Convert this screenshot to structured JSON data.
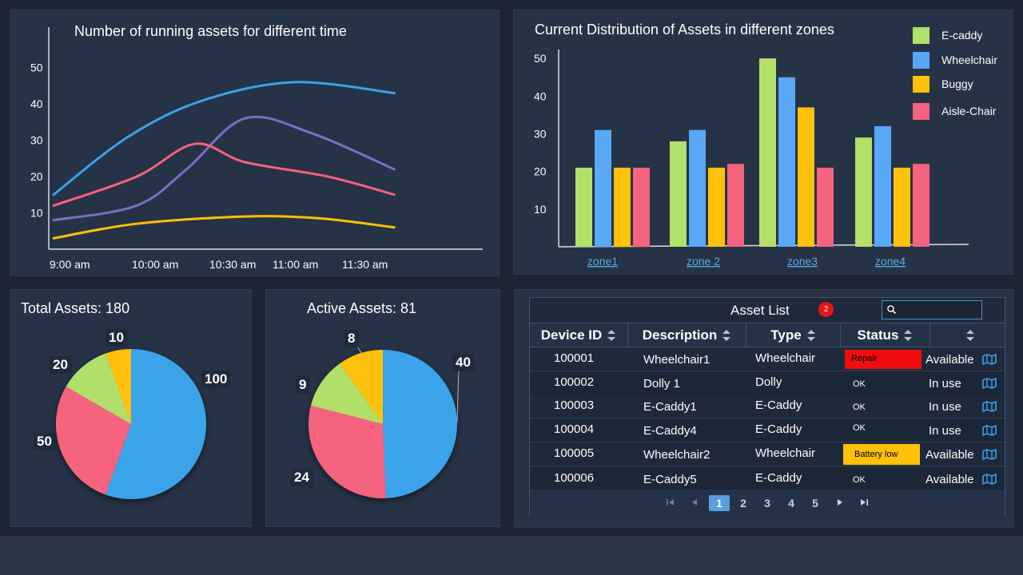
{
  "colors": {
    "e_caddy": "#b1e06b",
    "wheelchair": "#58a8f5",
    "buggy": "#ffc10a",
    "aisle_chair": "#f5637e",
    "line_blue": "#3aa3ea",
    "line_purple": "#7b6fc4",
    "line_pink": "#f5637e",
    "line_yellow": "#ffc10a",
    "pie_blue": "#3aa3ea",
    "pie_pink": "#f5637e",
    "pie_green": "#b1e06b",
    "pie_yellow": "#ffc10a",
    "repair": "#ef0d0d",
    "battery_low": "#ffc10a"
  },
  "line_chart": {
    "title": "Number of running assets for different time",
    "chart_data": {
      "type": "line",
      "x_labels": [
        "9:00 am",
        "10:00 am",
        "10:30 am",
        "11:00 am",
        "11:30 am"
      ],
      "y_ticks": [
        10,
        20,
        30,
        40,
        50
      ],
      "ylim": [
        0,
        55
      ],
      "series": [
        {
          "color": "#3aa3ea",
          "points": [
            [
              0,
              15
            ],
            [
              0.9,
              31
            ],
            [
              1.8,
              41
            ],
            [
              2.9,
              46
            ],
            [
              4.1,
              43
            ]
          ]
        },
        {
          "color": "#7b6fc4",
          "points": [
            [
              0,
              8
            ],
            [
              1,
              12
            ],
            [
              1.6,
              22
            ],
            [
              2.3,
              36
            ],
            [
              3.1,
              32
            ],
            [
              4.1,
              22
            ]
          ]
        },
        {
          "color": "#f5637e",
          "points": [
            [
              0,
              12
            ],
            [
              1,
              20
            ],
            [
              1.7,
              29
            ],
            [
              2.3,
              24
            ],
            [
              3.3,
              20
            ],
            [
              4.1,
              15
            ]
          ]
        },
        {
          "color": "#ffc10a",
          "points": [
            [
              0,
              3
            ],
            [
              1,
              7
            ],
            [
              2.3,
              9
            ],
            [
              3.2,
              8.5
            ],
            [
              4.1,
              6
            ]
          ]
        }
      ]
    }
  },
  "bar_chart": {
    "title": "Current Distribution of Assets in different zones",
    "chart_data": {
      "type": "bar",
      "categories": [
        "zone1",
        "zone 2",
        "zone3",
        "zone4"
      ],
      "y_ticks": [
        10,
        20,
        30,
        40,
        50
      ],
      "ylim": [
        0,
        53
      ],
      "series": [
        {
          "name": "E-caddy",
          "color": "#b1e06b",
          "values": [
            21,
            28,
            50,
            29
          ]
        },
        {
          "name": "Wheelchair",
          "color": "#58a8f5",
          "values": [
            31,
            31,
            45,
            32
          ]
        },
        {
          "name": "Buggy",
          "color": "#ffc10a",
          "values": [
            21,
            21,
            37,
            21
          ]
        },
        {
          "name": "Aisle-Chair",
          "color": "#f5637e",
          "values": [
            21,
            22,
            21,
            22
          ]
        }
      ],
      "legend_position": "top-right"
    }
  },
  "total_assets": {
    "title": "Total Assets: 180",
    "chart_data": {
      "type": "pie",
      "slices": [
        {
          "label": "100",
          "value": 100,
          "color": "#3aa3ea"
        },
        {
          "label": "50",
          "value": 50,
          "color": "#f5637e"
        },
        {
          "label": "20",
          "value": 20,
          "color": "#b1e06b"
        },
        {
          "label": "10",
          "value": 10,
          "color": "#ffc10a"
        }
      ]
    }
  },
  "active_assets": {
    "title": "Active Assets: 81",
    "chart_data": {
      "type": "pie",
      "slices": [
        {
          "label": "40",
          "value": 40,
          "color": "#3aa3ea"
        },
        {
          "label": "24",
          "value": 24,
          "color": "#f5637e"
        },
        {
          "label": "9",
          "value": 9,
          "color": "#b1e06b"
        },
        {
          "label": "8",
          "value": 8,
          "color": "#ffc10a"
        }
      ]
    }
  },
  "asset_list": {
    "title": "Asset List",
    "badge": "2",
    "search": {
      "value": "",
      "placeholder": ""
    },
    "columns": [
      "Device ID",
      "Description",
      "Type",
      "Status",
      ""
    ],
    "rows": [
      {
        "id": "100001",
        "description": "Wheelchair1",
        "type": "Wheelchair",
        "status": "Repair",
        "status_kind": "repair",
        "availability": "Available"
      },
      {
        "id": "100002",
        "description": "Dolly 1",
        "type": "Dolly",
        "status": "OK",
        "status_kind": "ok",
        "availability": "In use"
      },
      {
        "id": "100003",
        "description": "E-Caddy1",
        "type": "E-Caddy",
        "status": "OK",
        "status_kind": "ok",
        "availability": "In use"
      },
      {
        "id": "100004",
        "description": "E-Caddy4",
        "type": "E-Caddy",
        "status": "OK",
        "status_kind": "ok",
        "availability": "In use"
      },
      {
        "id": "100005",
        "description": "Wheelchair2",
        "type": "Wheelchair",
        "status": "Battery low",
        "status_kind": "battery",
        "availability": "Available"
      },
      {
        "id": "100006",
        "description": "E-Caddy5",
        "type": "E-Caddy",
        "status": "OK",
        "status_kind": "ok",
        "availability": "Available"
      }
    ],
    "pagination": {
      "pages": [
        "1",
        "2",
        "3",
        "4",
        "5"
      ],
      "current": "1"
    }
  }
}
